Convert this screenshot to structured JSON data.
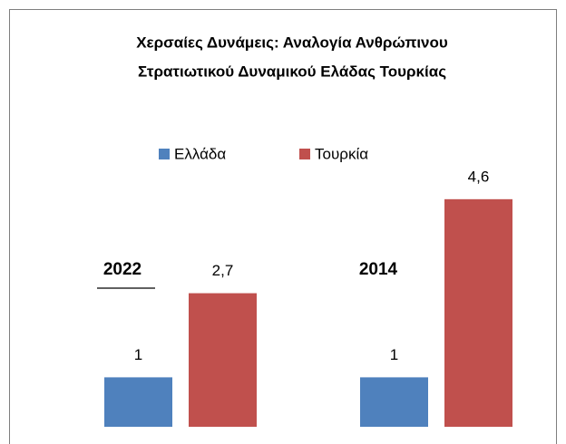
{
  "chart_data": {
    "type": "bar",
    "title": [
      "Χερσαίες Δυνάμεις: Αναλογία Ανθρώπινου",
      "Στρατιωτικού Δυναμικού Ελάδας Τουρκίας"
    ],
    "categories": [
      "2022",
      "2014"
    ],
    "series": [
      {
        "name": "Ελλάδα",
        "color": "#4f81bd",
        "values": [
          1,
          1
        ],
        "value_labels": [
          "1",
          "1"
        ]
      },
      {
        "name": "Τουρκία",
        "color": "#c0504d",
        "values": [
          2.7,
          4.6
        ],
        "value_labels": [
          "2,7",
          "4,6"
        ]
      }
    ],
    "ylim": [
      0,
      5
    ],
    "legend": "top"
  }
}
